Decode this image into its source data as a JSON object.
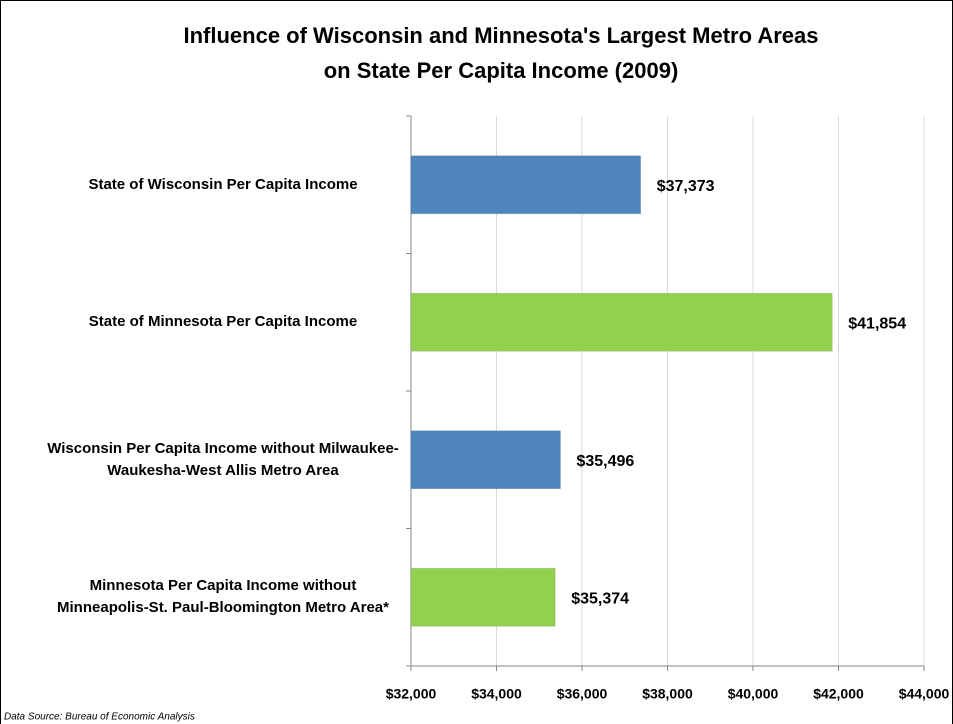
{
  "chart_data": {
    "type": "bar",
    "orientation": "horizontal",
    "title": [
      "Influence of Wisconsin and Minnesota's Largest Metro Areas",
      "on State Per Capita Income (2009)"
    ],
    "categories": [
      "State of Wisconsin Per Capita Income",
      "State of Minnesota Per Capita Income",
      "Wisconsin Per Capita Income without Milwaukee-Waukesha-West Allis Metro Area",
      "Minnesota Per Capita Income without Minneapolis-St. Paul-Bloomington Metro Area*"
    ],
    "values": [
      37373,
      41854,
      35496,
      35374
    ],
    "value_labels": [
      "$37,373",
      "$41,854",
      "$35,496",
      "$35,374"
    ],
    "colors": [
      "#4f86bb",
      "#92d050",
      "#4f86bb",
      "#92d050"
    ],
    "xlim": [
      32000,
      44000
    ],
    "xticks": [
      {
        "value": 32000,
        "label": "$32,000"
      },
      {
        "value": 34000,
        "label": "$34,000"
      },
      {
        "value": 36000,
        "label": "$36,000"
      },
      {
        "value": 38000,
        "label": "$38,000"
      },
      {
        "value": 40000,
        "label": "$40,000"
      },
      {
        "value": 42000,
        "label": "$42,000"
      },
      {
        "value": 44000,
        "label": "$44,000"
      }
    ],
    "grid": true,
    "source": "Data Source:  Bureau of Economic Analysis"
  }
}
